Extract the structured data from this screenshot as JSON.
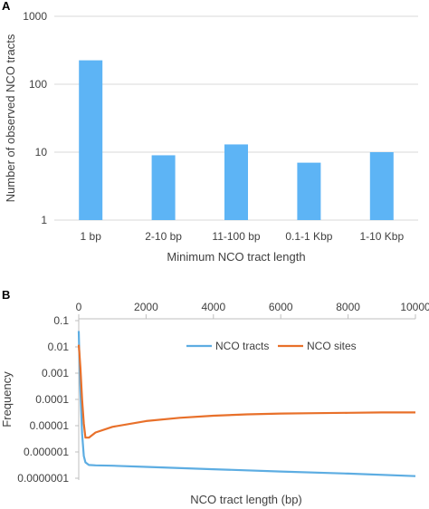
{
  "panel_a_label": "A",
  "panel_b_label": "B",
  "chart_data": [
    {
      "type": "bar",
      "panel": "A",
      "categories": [
        "1 bp",
        "2-10 bp",
        "11-100 bp",
        "0.1-1 Kbp",
        "1-10 Kbp"
      ],
      "values": [
        225,
        9,
        13,
        7,
        10
      ],
      "xlabel": "Minimum NCO tract length",
      "ylabel": "Number of observed NCO tracts",
      "yscale": "log",
      "ylim": [
        1,
        1000
      ],
      "yticks": [
        "1",
        "10",
        "100",
        "1000"
      ],
      "grid": true,
      "colors": {
        "bar": "#5DB4F5",
        "grid": "#D9D9D9"
      }
    },
    {
      "type": "line",
      "panel": "B",
      "xlabel": "NCO tract length (bp)",
      "ylabel": "Frequency",
      "yscale": "log",
      "xlim": [
        0,
        10000
      ],
      "ylim": [
        1e-07,
        0.1
      ],
      "xaxis_position": "top",
      "xticks": [
        "0",
        "2000",
        "4000",
        "6000",
        "8000",
        "10000"
      ],
      "yticks": [
        "0.1",
        "0.01",
        "0.001",
        "0.0001",
        "0.00001",
        "0.000001",
        "0.0000001"
      ],
      "legend": "inside-top",
      "series": [
        {
          "name": "NCO tracts",
          "color": "#5DADE2",
          "x": [
            1,
            20,
            50,
            100,
            150,
            200,
            300,
            500,
            1000,
            2000,
            4000,
            6000,
            8000,
            10000
          ],
          "y": [
            0.04,
            0.004,
            0.0002,
            5e-06,
            7e-07,
            4e-07,
            3.2e-07,
            3.1e-07,
            3e-07,
            2.7e-07,
            2.2e-07,
            1.8e-07,
            1.5e-07,
            1.2e-07
          ]
        },
        {
          "name": "NCO sites",
          "color": "#E8702A",
          "x": [
            1,
            20,
            50,
            100,
            150,
            200,
            300,
            500,
            1000,
            2000,
            3000,
            4000,
            5000,
            6000,
            7000,
            8000,
            9000,
            10000
          ],
          "y": [
            0.012,
            0.006,
            0.0015,
            0.0001,
            1.2e-05,
            3.5e-06,
            3.5e-06,
            5.5e-06,
            9e-06,
            1.5e-05,
            2e-05,
            2.4e-05,
            2.7e-05,
            2.9e-05,
            3e-05,
            3.1e-05,
            3.2e-05,
            3.2e-05
          ]
        }
      ]
    }
  ]
}
